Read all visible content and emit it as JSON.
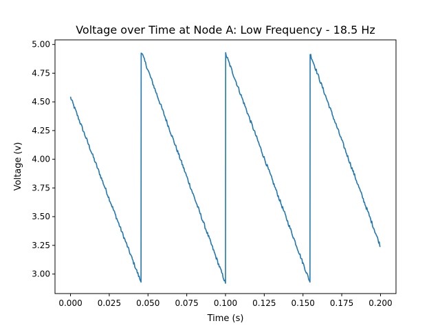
{
  "chart_data": {
    "type": "line",
    "title": "Voltage over Time at Node A: Low Frequency - 18.5 Hz",
    "xlabel": "Time (s)",
    "ylabel": "Voltage (v)",
    "xlim": [
      -0.01,
      0.21
    ],
    "ylim": [
      2.83,
      5.04
    ],
    "xticks": [
      0.0,
      0.025,
      0.05,
      0.075,
      0.1,
      0.125,
      0.15,
      0.175,
      0.2
    ],
    "xtick_labels": [
      "0.000",
      "0.025",
      "0.050",
      "0.075",
      "0.100",
      "0.125",
      "0.150",
      "0.175",
      "0.200"
    ],
    "yticks": [
      3.0,
      3.25,
      3.5,
      3.75,
      4.0,
      4.25,
      4.5,
      4.75,
      5.0
    ],
    "ytick_labels": [
      "3.00",
      "3.25",
      "3.50",
      "3.75",
      "4.00",
      "4.25",
      "4.50",
      "4.75",
      "5.00"
    ],
    "grid": false,
    "series": [
      {
        "color": "#1f77b4",
        "x": [
          0.0,
          0.0455,
          0.0456,
          0.1,
          0.1001,
          0.1545,
          0.1546,
          0.2
        ],
        "y": [
          4.54,
          2.93,
          4.94,
          2.92,
          4.92,
          2.93,
          4.92,
          3.24
        ]
      }
    ]
  }
}
